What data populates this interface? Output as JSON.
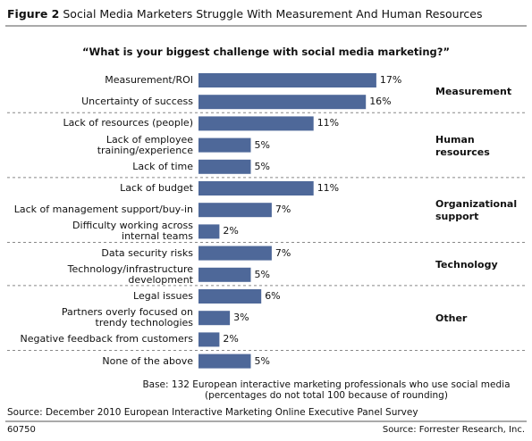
{
  "chart_data": {
    "type": "bar",
    "orientation": "horizontal",
    "title_label": "Figure 2",
    "title": "Social Media Marketers Struggle With Measurement And Human Resources",
    "subtitle": "“What is your biggest challenge with social media marketing?”",
    "color": "#4e6899",
    "groups": [
      {
        "name": "Measurement",
        "categories": [
          "Measurement/ROI",
          "Uncertainty of success"
        ],
        "values": [
          17,
          16
        ],
        "value_labels": [
          "17%",
          "16%"
        ]
      },
      {
        "name": "Human\nresources",
        "categories": [
          "Lack of resources (people)",
          "Lack of employee\ntraining/experience",
          "Lack of time"
        ],
        "values": [
          11,
          5,
          5
        ],
        "value_labels": [
          "11%",
          "5%",
          "5%"
        ]
      },
      {
        "name": "Organizational\nsupport",
        "categories": [
          "Lack of budget",
          "Lack of management support/buy-in",
          "Difficulty working across\ninternal teams"
        ],
        "values": [
          11,
          7,
          2
        ],
        "value_labels": [
          "11%",
          "7%",
          "2%"
        ]
      },
      {
        "name": "Technology",
        "categories": [
          "Data security risks",
          "Technology/infrastructure\ndevelopment"
        ],
        "values": [
          7,
          5
        ],
        "value_labels": [
          "7%",
          "5%"
        ]
      },
      {
        "name": "Other",
        "categories": [
          "Legal issues",
          "Partners overly focused on\ntrendy technologies",
          "Negative feedback from customers"
        ],
        "values": [
          6,
          3,
          2
        ],
        "value_labels": [
          "6%",
          "3%",
          "2%"
        ]
      },
      {
        "categories": [
          "None of the above"
        ],
        "values": [
          5
        ],
        "value_labels": [
          "5%"
        ]
      }
    ],
    "base_note": "Base: 132 European interactive marketing professionals who use social media\n(percentages do not total 100 because of rounding)",
    "source": "Source: December 2010 European Interactive Marketing Online Executive Panel Survey",
    "figure_id": "60750",
    "credit": "Source: Forrester Research, Inc."
  }
}
